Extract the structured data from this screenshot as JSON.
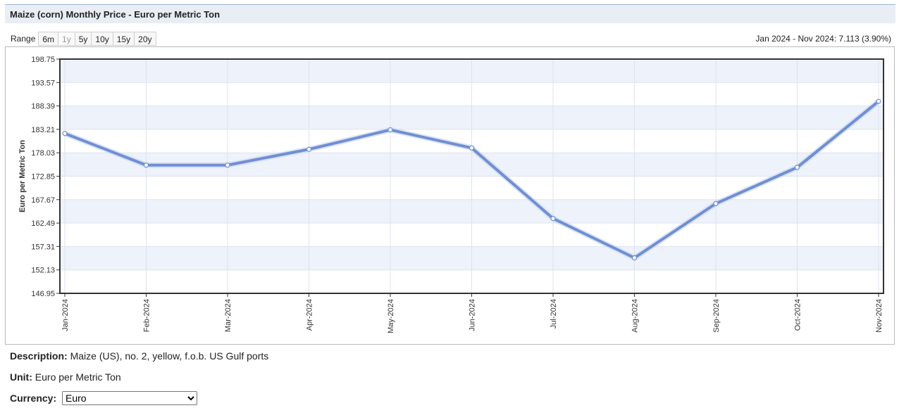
{
  "header": {
    "title": "Maize (corn) Monthly Price - Euro per Metric Ton"
  },
  "range": {
    "label": "Range",
    "buttons": [
      {
        "label": "6m",
        "enabled": true
      },
      {
        "label": "1y",
        "enabled": false
      },
      {
        "label": "5y",
        "enabled": true
      },
      {
        "label": "10y",
        "enabled": true
      },
      {
        "label": "15y",
        "enabled": true
      },
      {
        "label": "20y",
        "enabled": true
      }
    ],
    "change_text": "Jan 2024 - Nov 2024: 7.113 (3.90%)"
  },
  "chart_data": {
    "type": "line",
    "title": "",
    "xlabel": "",
    "ylabel": "Euro per Metric Ton",
    "categories": [
      "Jan-2024",
      "Feb-2024",
      "Mar-2024",
      "Apr-2024",
      "May-2024",
      "Jun-2024",
      "Jul-2024",
      "Aug-2024",
      "Sep-2024",
      "Oct-2024",
      "Nov-2024"
    ],
    "series": [
      {
        "values": [
          182.3,
          175.3,
          175.3,
          178.8,
          183.1,
          179.1,
          163.5,
          154.8,
          166.8,
          174.8,
          189.4
        ]
      }
    ],
    "ylim": [
      146.95,
      198.75
    ],
    "yticks": [
      "146.95",
      "152.13",
      "157.31",
      "162.49",
      "167.67",
      "172.85",
      "178.03",
      "183.21",
      "188.39",
      "193.57",
      "198.75"
    ],
    "grid": true,
    "line_color": "#6f8fd4",
    "band_color": "#eef2fa"
  },
  "details": {
    "description_label": "Description:",
    "description_value": "Maize (US), no. 2, yellow, f.o.b. US Gulf ports",
    "unit_label": "Unit:",
    "unit_value": "Euro per Metric Ton",
    "currency_label": "Currency:",
    "currency_selected": "Euro"
  }
}
